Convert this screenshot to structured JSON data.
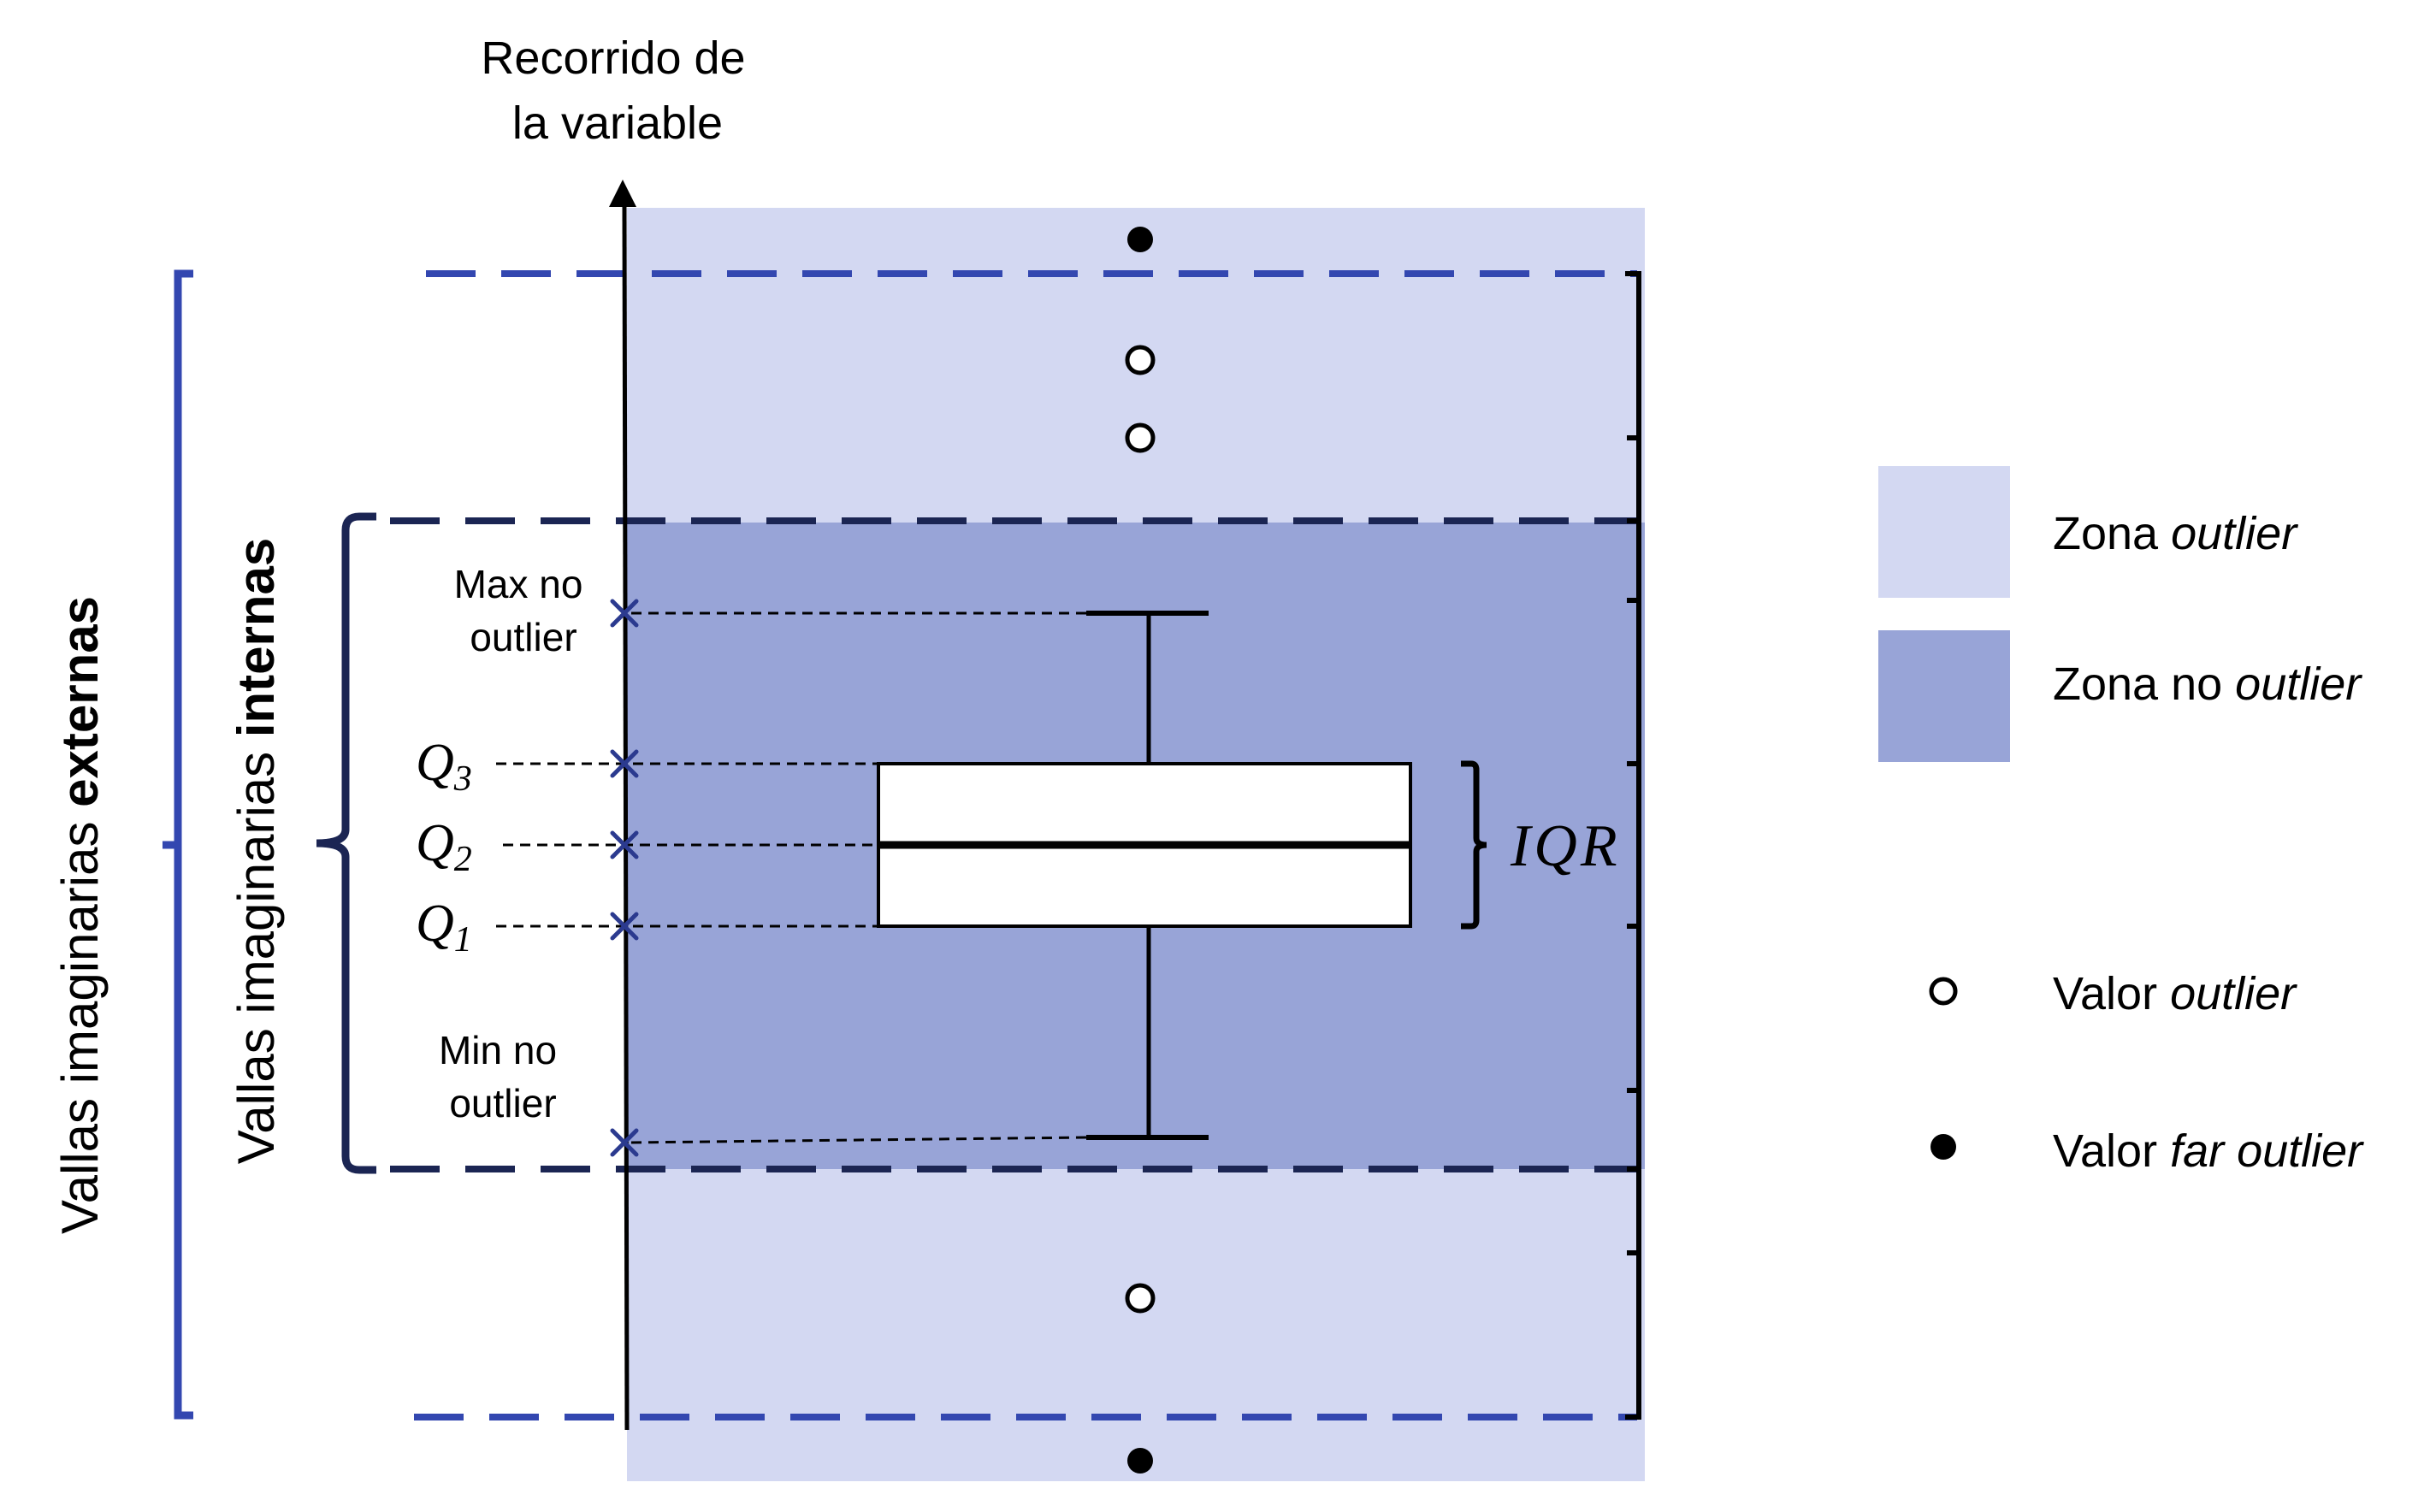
{
  "axis": {
    "title_line1": "Recorrido de",
    "title_line2": "la variable"
  },
  "labels": {
    "max_line1": "Max no",
    "max_line2": "outlier",
    "min_line1": "Min no",
    "min_line2": "outlier",
    "q3_main": "Q",
    "q3_sub": "3",
    "q2_main": "Q",
    "q2_sub": "2",
    "q1_main": "Q",
    "q1_sub": "1",
    "iqr": "IQR"
  },
  "fences": {
    "external_prefix": "Vallas imaginarias ",
    "external_bold": "externas",
    "internal_prefix": "Vallas imaginarias ",
    "internal_bold": "internas"
  },
  "legend": {
    "zone_outlier_prefix": "Zona ",
    "zone_outlier_italic": "outlier",
    "zone_no_outlier_prefix": "Zona no ",
    "zone_no_outlier_italic": "outlier",
    "value_outlier_prefix": "Valor ",
    "value_outlier_italic": "outlier",
    "value_far_prefix": "Valor ",
    "value_far_italic": "far outlier"
  },
  "colors": {
    "zone_outlier": "#d3d8f2",
    "zone_no_outlier": "#98a4d7",
    "external_fence": "#3347b0",
    "internal_fence": "#1b2553",
    "marker": "#2b3a8f",
    "axis": "#000000"
  },
  "icons": {
    "outlier": "hollow-circle",
    "far_outlier": "filled-circle",
    "quantile_marker": "x-mark",
    "axis_arrow": "arrow-up"
  }
}
